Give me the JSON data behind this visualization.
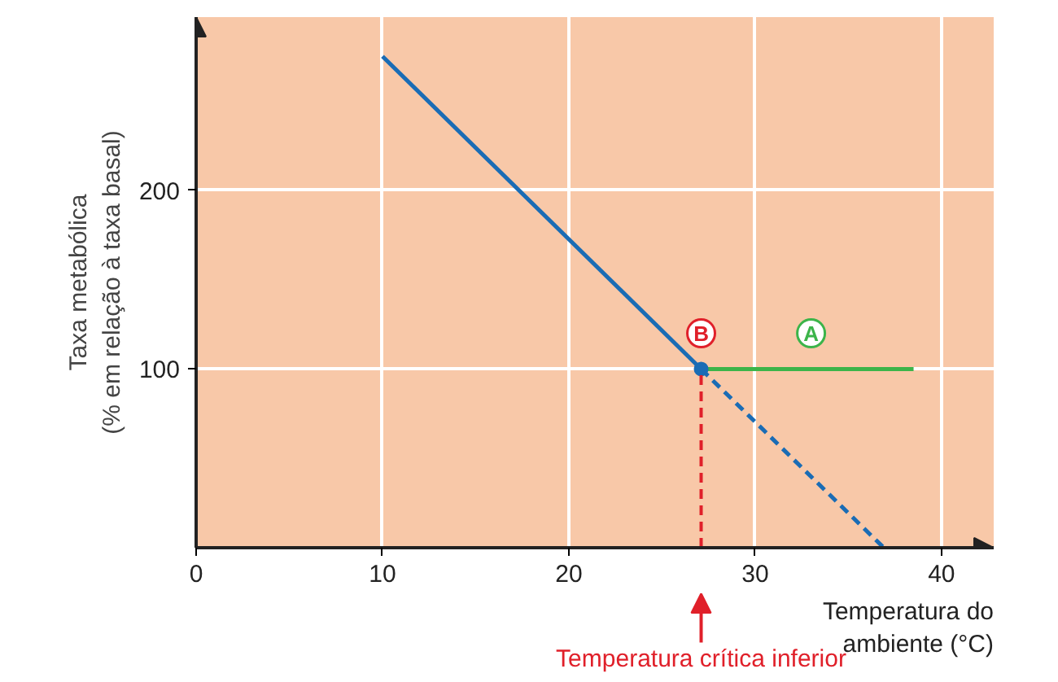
{
  "chart_data": {
    "type": "line",
    "xlabel": "Temperatura do\nambiente (°C)",
    "ylabel": "Taxa metabólica\n(% em relação à taxa basal)",
    "xlim": [
      0,
      42.8
    ],
    "ylim": [
      0,
      297
    ],
    "xticks": [
      0,
      10,
      20,
      30,
      40
    ],
    "yticks": [
      100,
      200
    ],
    "grid": true,
    "series": [
      {
        "color": "#1a6cb5",
        "x": [
          10,
          27.1
        ],
        "values": [
          275,
          100
        ],
        "line_style": "solid"
      },
      {
        "color": "#1a6cb5",
        "x": [
          27.1,
          36.9
        ],
        "values": [
          100,
          0
        ],
        "line_style": "dashed"
      },
      {
        "color": "#3cb44a",
        "x": [
          27.1,
          38.5
        ],
        "values": [
          100,
          100
        ],
        "line_style": "solid"
      },
      {
        "type": "scatter",
        "color": "#1a6cb5",
        "x": [
          27.1
        ],
        "values": [
          100
        ],
        "marker": "circle"
      }
    ],
    "ref_lines": [
      {
        "axis": "x",
        "value": 27.1,
        "label": "Temperatura crítica inferior",
        "color": "#e0202a",
        "line_style": "dashed"
      }
    ],
    "annotations": [
      {
        "text": "B",
        "x": 27.1,
        "y": 100
      },
      {
        "text": "A",
        "x": 33,
        "y": 100
      }
    ]
  }
}
